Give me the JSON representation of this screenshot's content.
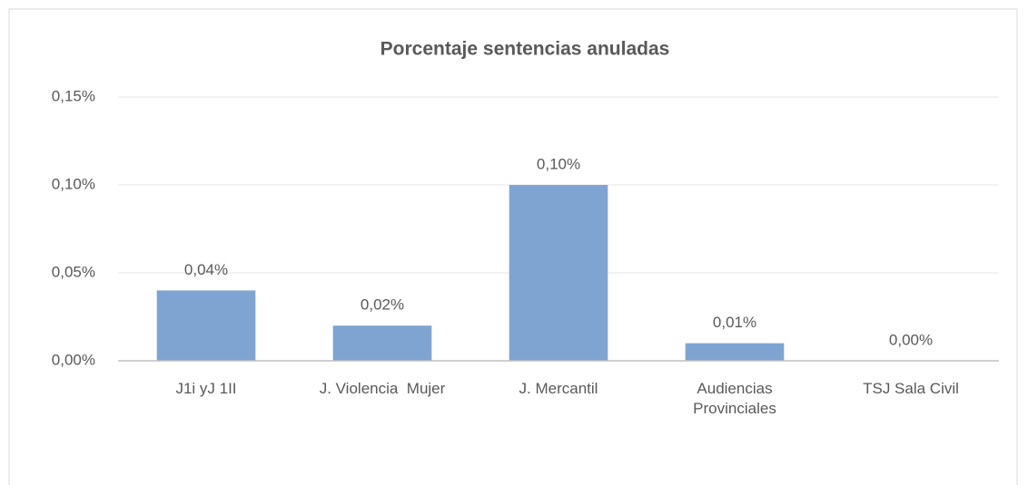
{
  "chart_data": {
    "type": "bar",
    "title": "Porcentaje sentencias anuladas",
    "categories": [
      "J1i yJ 1II",
      "J. Violencia  Mujer",
      "J. Mercantil",
      "Audiencias Provinciales",
      "TSJ Sala Civil"
    ],
    "values": [
      0.04,
      0.02,
      0.1,
      0.01,
      0.0
    ],
    "value_labels": [
      "0,04%",
      "0,02%",
      "0,10%",
      "0,01%",
      "0,00%"
    ],
    "color": "#7fa4d2",
    "ylim": [
      0,
      0.15
    ],
    "yticks": [
      {
        "value": 0,
        "label": "0,00%"
      },
      {
        "value": 0.05,
        "label": "0,05%"
      },
      {
        "value": 0.1,
        "label": "0,10%"
      },
      {
        "value": 0.15,
        "label": "0,15%"
      }
    ],
    "grid": true
  }
}
